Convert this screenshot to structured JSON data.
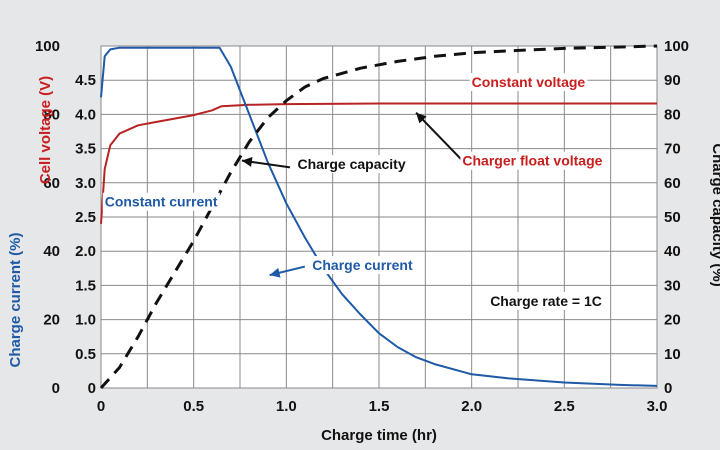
{
  "chart_data": {
    "type": "line",
    "x": {
      "label": "Charge time (hr)",
      "range": [
        0,
        3.0
      ],
      "ticks": [
        "0",
        "0.5",
        "1.0",
        "1.5",
        "2.0",
        "2.5",
        "3.0"
      ]
    },
    "y_left_outer": {
      "label": "Charge current (%)",
      "color": "#1f5aa6",
      "range": [
        0,
        100
      ],
      "ticks": [
        "0",
        "20",
        "40",
        "60",
        "80",
        "100"
      ]
    },
    "y_left_inner": {
      "label": "Cell voltage (V)",
      "color": "#c81e1e",
      "range": [
        0,
        5.0
      ],
      "ticks": [
        "0",
        "0.5",
        "1.0",
        "1.5",
        "2.0",
        "2.5",
        "3.0",
        "3.5",
        "4.0",
        "4.5"
      ]
    },
    "y_right": {
      "label": "Charge capacity (%)",
      "color": "#111111",
      "range": [
        0,
        100
      ],
      "ticks": [
        "0",
        "10",
        "20",
        "30",
        "40",
        "50",
        "60",
        "70",
        "80",
        "90",
        "100"
      ]
    },
    "grid": true,
    "series": [
      {
        "name": "Cell voltage",
        "axis": "voltage",
        "color": "#b82323",
        "style": "solid",
        "points": [
          [
            0,
            2.4
          ],
          [
            0.02,
            3.2
          ],
          [
            0.05,
            3.55
          ],
          [
            0.1,
            3.72
          ],
          [
            0.2,
            3.84
          ],
          [
            0.3,
            3.89
          ],
          [
            0.4,
            3.94
          ],
          [
            0.5,
            3.99
          ],
          [
            0.6,
            4.06
          ],
          [
            0.65,
            4.12
          ],
          [
            0.8,
            4.14
          ],
          [
            1.0,
            4.15
          ],
          [
            1.5,
            4.16
          ],
          [
            2.0,
            4.16
          ],
          [
            3.0,
            4.16
          ]
        ]
      },
      {
        "name": "Charge current",
        "axis": "current",
        "color": "#1f5aa6",
        "style": "solid",
        "points": [
          [
            0,
            85
          ],
          [
            0.02,
            97
          ],
          [
            0.05,
            99
          ],
          [
            0.1,
            99.5
          ],
          [
            0.64,
            99.5
          ],
          [
            0.7,
            94
          ],
          [
            0.8,
            80
          ],
          [
            0.9,
            66
          ],
          [
            1.0,
            54
          ],
          [
            1.1,
            44
          ],
          [
            1.2,
            35
          ],
          [
            1.3,
            27.5
          ],
          [
            1.4,
            21.5
          ],
          [
            1.5,
            16
          ],
          [
            1.6,
            12
          ],
          [
            1.7,
            9
          ],
          [
            1.8,
            7
          ],
          [
            2.0,
            4
          ],
          [
            2.2,
            2.8
          ],
          [
            2.5,
            1.6
          ],
          [
            2.8,
            0.9
          ],
          [
            3.0,
            0.6
          ]
        ]
      },
      {
        "name": "Charge capacity",
        "axis": "capacity",
        "color": "#111111",
        "style": "dashed",
        "points": [
          [
            0,
            0
          ],
          [
            0.1,
            6
          ],
          [
            0.2,
            15
          ],
          [
            0.3,
            25
          ],
          [
            0.4,
            34
          ],
          [
            0.5,
            43
          ],
          [
            0.6,
            53
          ],
          [
            0.7,
            63
          ],
          [
            0.8,
            72
          ],
          [
            0.9,
            79
          ],
          [
            1.0,
            84
          ],
          [
            1.1,
            88
          ],
          [
            1.2,
            90.5
          ],
          [
            1.4,
            93.5
          ],
          [
            1.6,
            95.5
          ],
          [
            1.8,
            97
          ],
          [
            2.0,
            98
          ],
          [
            2.2,
            98.6
          ],
          [
            2.5,
            99.3
          ],
          [
            2.8,
            99.7
          ],
          [
            3.0,
            100
          ]
        ]
      }
    ],
    "annotations": [
      {
        "text": "Constant voltage",
        "color": "#c81e1e",
        "x": 2.0,
        "y": 88
      },
      {
        "text": "Charge capacity",
        "color": "#111111",
        "x": 1.06,
        "y": 64
      },
      {
        "text": "Charger float voltage",
        "color": "#c81e1e",
        "x": 1.95,
        "y": 65
      },
      {
        "text": "Constant current",
        "color": "#1f5aa6",
        "x": 0.02,
        "y": 53
      },
      {
        "text": "Charge current",
        "color": "#1f5aa6",
        "x": 1.14,
        "y": 34.5
      },
      {
        "text": "Charge rate = 1C",
        "color": "#111111",
        "x": 2.1,
        "y": 24
      }
    ],
    "arrows": [
      {
        "from": [
          1.02,
          64.5
        ],
        "to": [
          0.76,
          66.5
        ],
        "color": "#111111"
      },
      {
        "from": [
          1.95,
          66.5
        ],
        "to": [
          1.7,
          80.5
        ],
        "color": "#111111"
      },
      {
        "from": [
          1.1,
          35.5
        ],
        "to": [
          0.91,
          33
        ],
        "color": "#1f5aa6"
      }
    ]
  }
}
